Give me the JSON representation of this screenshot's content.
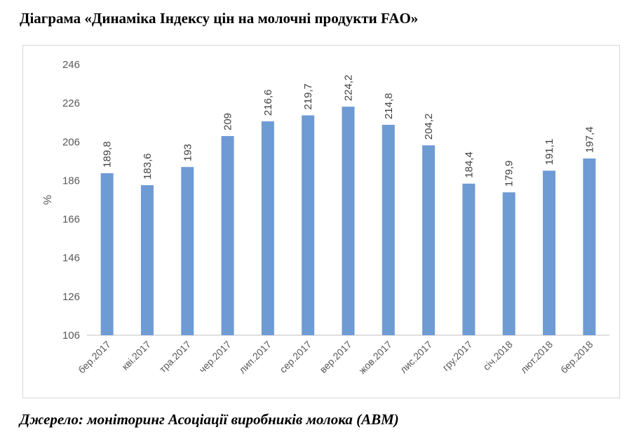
{
  "header": {
    "title": "Діаграма «Динаміка Індексу цін на молочні продукти FAO»"
  },
  "footer": {
    "source": "Джерело: моніторинг Асоціації виробників молока (АВМ)"
  },
  "chart_data": {
    "type": "bar",
    "title": "",
    "xlabel": "",
    "ylabel": "%",
    "ylim": [
      106,
      246
    ],
    "yticks": [
      106,
      126,
      146,
      166,
      186,
      206,
      226,
      246
    ],
    "grid": false,
    "legend": "none",
    "bar_color": "#6f9bd4",
    "categories": [
      "бер.2017",
      "кві.2017",
      "тра.2017",
      "чер.2017",
      "лип.2017",
      "сер.2017",
      "вер.2017",
      "жов.2017",
      "лис.2017",
      "гру.2017",
      "січ.2018",
      "лют.2018",
      "бер.2018"
    ],
    "values": [
      189.8,
      183.6,
      193,
      209,
      216.6,
      219.7,
      224.2,
      214.8,
      204.2,
      184.4,
      179.9,
      191.1,
      197.4
    ],
    "value_labels": [
      "189,8",
      "183,6",
      "193",
      "209",
      "216,6",
      "219,7",
      "224,2",
      "214,8",
      "204,2",
      "184,4",
      "179,9",
      "191,1",
      "197,4"
    ],
    "ytick_labels": [
      "106",
      "126",
      "146",
      "166",
      "186",
      "206",
      "226",
      "246"
    ]
  }
}
